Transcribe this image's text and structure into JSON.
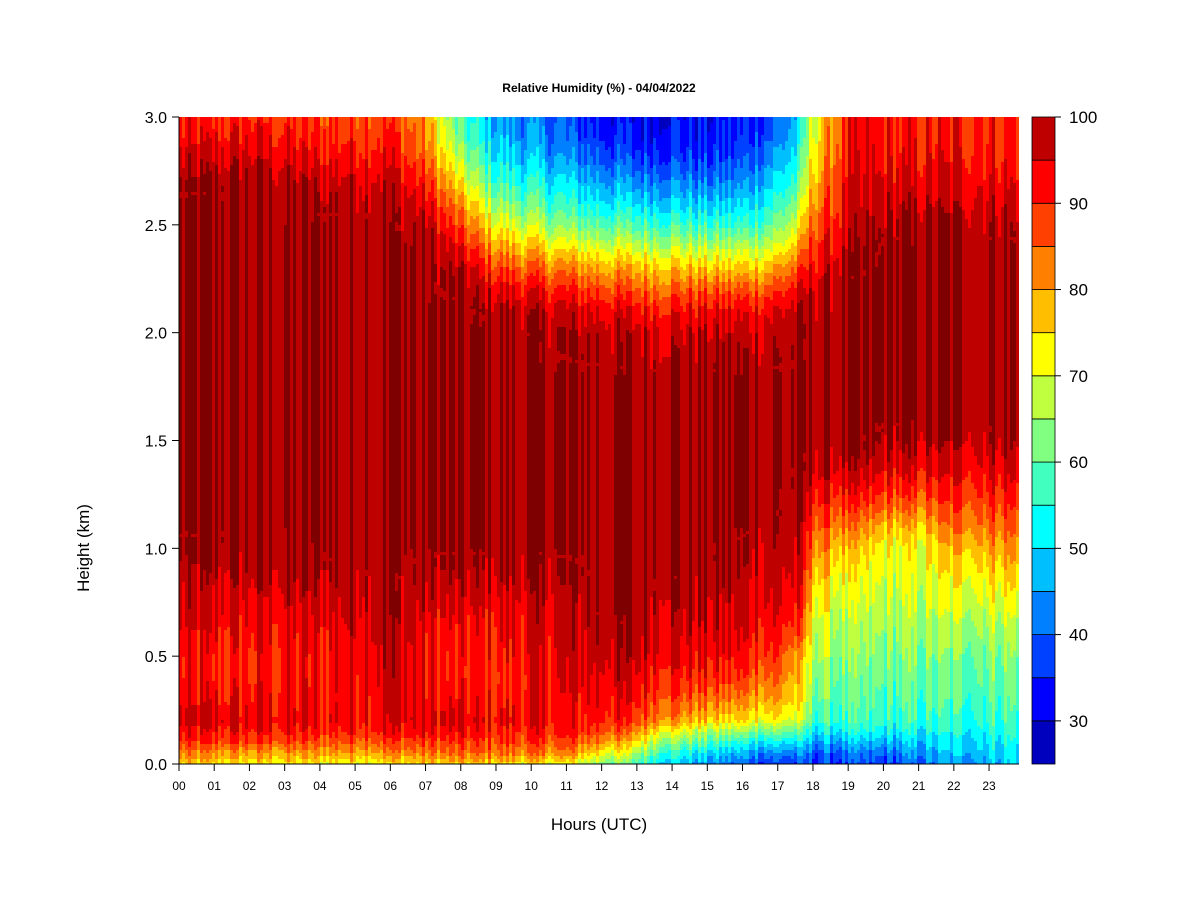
{
  "chart_data": {
    "type": "heatmap",
    "title": "Relative Humidity (%) - 04/04/2022",
    "xlabel": "Hours (UTC)",
    "ylabel": "Height (km)",
    "x_tick_labels": [
      "00",
      "01",
      "02",
      "03",
      "04",
      "05",
      "06",
      "07",
      "08",
      "09",
      "10",
      "11",
      "12",
      "13",
      "14",
      "15",
      "16",
      "17",
      "18",
      "19",
      "20",
      "21",
      "22",
      "23"
    ],
    "xlim": [
      0,
      23.85
    ],
    "y_tick_labels": [
      "0.0",
      "0.5",
      "1.0",
      "1.5",
      "2.0",
      "2.5",
      "3.0"
    ],
    "ylim": [
      0.0,
      3.0
    ],
    "colorbar": {
      "range": [
        25,
        100
      ],
      "tick_labels": [
        "100",
        "90",
        "80",
        "70",
        "60",
        "50",
        "40",
        "30"
      ],
      "tick_values": [
        100,
        90,
        80,
        70,
        60,
        50,
        40,
        30
      ],
      "levels": [
        25,
        30,
        35,
        40,
        45,
        50,
        55,
        60,
        65,
        70,
        75,
        80,
        85,
        90,
        95,
        100
      ],
      "colors": [
        "#00007f",
        "#0000bf",
        "#0000ff",
        "#0040ff",
        "#0080ff",
        "#00bfff",
        "#00ffff",
        "#40ffbf",
        "#80ff80",
        "#bfff40",
        "#ffff00",
        "#ffbf00",
        "#ff8000",
        "#ff4000",
        "#ff0000",
        "#bf0000",
        "#7f0000"
      ]
    },
    "profile_heights_km": [
      0.0,
      0.05,
      0.1,
      0.15,
      0.2,
      0.3,
      0.4,
      0.5,
      0.6,
      0.7,
      0.8,
      0.9,
      1.0,
      1.1,
      1.2,
      1.3,
      1.4,
      1.5,
      1.6,
      1.8,
      2.0,
      2.1,
      2.2,
      2.3,
      2.4,
      2.5,
      2.6,
      2.7,
      2.8,
      2.9,
      3.0
    ],
    "profiles": [
      {
        "hour": 0,
        "rh": [
          75,
          82,
          88,
          92,
          95,
          93,
          92,
          92,
          93,
          95,
          96,
          98,
          99,
          100,
          100,
          100,
          100,
          100,
          100,
          100,
          100,
          100,
          100,
          100,
          100,
          100,
          100,
          99,
          96,
          92,
          90
        ]
      },
      {
        "hour": 2,
        "rh": [
          74,
          80,
          88,
          92,
          94,
          92,
          91,
          91,
          92,
          94,
          96,
          98,
          99,
          100,
          100,
          100,
          100,
          100,
          100,
          100,
          100,
          100,
          100,
          100,
          100,
          100,
          100,
          99,
          97,
          93,
          91
        ]
      },
      {
        "hour": 4,
        "rh": [
          73,
          80,
          86,
          91,
          93,
          92,
          92,
          92,
          93,
          95,
          97,
          99,
          100,
          100,
          100,
          100,
          100,
          100,
          100,
          100,
          100,
          100,
          100,
          100,
          100,
          100,
          99,
          97,
          93,
          90,
          88
        ]
      },
      {
        "hour": 6,
        "rh": [
          74,
          82,
          88,
          93,
          95,
          96,
          97,
          98,
          99,
          100,
          100,
          100,
          100,
          100,
          100,
          100,
          100,
          100,
          100,
          100,
          100,
          100,
          100,
          100,
          100,
          100,
          99,
          97,
          94,
          91,
          89
        ]
      },
      {
        "hour": 7,
        "rh": [
          76,
          83,
          88,
          93,
          95,
          93,
          92,
          92,
          93,
          95,
          97,
          99,
          100,
          100,
          100,
          100,
          100,
          100,
          100,
          100,
          100,
          100,
          100,
          100,
          100,
          98,
          94,
          90,
          85,
          82,
          80
        ]
      },
      {
        "hour": 8,
        "rh": [
          76,
          84,
          88,
          92,
          94,
          92,
          90,
          90,
          91,
          93,
          96,
          98,
          100,
          100,
          100,
          100,
          100,
          100,
          100,
          100,
          100,
          100,
          99,
          97,
          92,
          86,
          80,
          72,
          66,
          60,
          57
        ]
      },
      {
        "hour": 9,
        "rh": [
          76,
          84,
          88,
          91,
          93,
          91,
          90,
          91,
          92,
          94,
          96,
          98,
          100,
          100,
          100,
          100,
          100,
          100,
          100,
          100,
          100,
          99,
          95,
          88,
          80,
          72,
          64,
          57,
          52,
          48,
          46
        ]
      },
      {
        "hour": 11,
        "rh": [
          72,
          82,
          87,
          91,
          93,
          93,
          94,
          95,
          96,
          97,
          98,
          99,
          100,
          100,
          100,
          100,
          100,
          100,
          100,
          100,
          99,
          96,
          90,
          82,
          72,
          62,
          55,
          50,
          44,
          40,
          38
        ]
      },
      {
        "hour": 12,
        "rh": [
          64,
          74,
          83,
          88,
          92,
          94,
          96,
          98,
          99,
          100,
          100,
          100,
          100,
          100,
          100,
          100,
          100,
          100,
          100,
          100,
          98,
          95,
          88,
          80,
          70,
          60,
          52,
          46,
          40,
          36,
          34
        ]
      },
      {
        "hour": 13,
        "rh": [
          58,
          66,
          74,
          82,
          88,
          92,
          95,
          97,
          99,
          100,
          100,
          100,
          100,
          100,
          100,
          100,
          100,
          100,
          100,
          100,
          97,
          93,
          86,
          78,
          68,
          58,
          50,
          43,
          37,
          33,
          31
        ]
      },
      {
        "hour": 14,
        "rh": [
          50,
          56,
          64,
          72,
          82,
          88,
          92,
          95,
          97,
          98,
          99,
          100,
          100,
          100,
          100,
          100,
          100,
          100,
          100,
          100,
          97,
          93,
          86,
          78,
          68,
          58,
          50,
          44,
          38,
          35,
          33
        ]
      },
      {
        "hour": 15,
        "rh": [
          44,
          50,
          58,
          66,
          76,
          84,
          90,
          93,
          95,
          97,
          98,
          99,
          100,
          100,
          100,
          100,
          100,
          100,
          100,
          100,
          97,
          93,
          86,
          76,
          66,
          56,
          48,
          41,
          36,
          33,
          32
        ]
      },
      {
        "hour": 16,
        "rh": [
          40,
          46,
          54,
          64,
          74,
          82,
          88,
          92,
          94,
          96,
          97,
          98,
          99,
          100,
          100,
          100,
          100,
          100,
          100,
          100,
          97,
          93,
          86,
          76,
          66,
          56,
          49,
          43,
          38,
          35,
          33
        ]
      },
      {
        "hour": 17,
        "rh": [
          37,
          43,
          52,
          62,
          72,
          80,
          85,
          89,
          92,
          94,
          96,
          97,
          98,
          99,
          100,
          100,
          100,
          100,
          100,
          100,
          98,
          95,
          88,
          80,
          70,
          62,
          56,
          51,
          46,
          42,
          40
        ]
      },
      {
        "hour": 17.6,
        "rh": [
          36,
          42,
          50,
          58,
          68,
          74,
          76,
          78,
          86,
          90,
          93,
          95,
          96,
          97,
          98,
          99,
          100,
          100,
          100,
          100,
          99,
          97,
          93,
          86,
          78,
          70,
          64,
          58,
          54,
          50,
          48
        ]
      },
      {
        "hour": 18,
        "rh": [
          36,
          40,
          46,
          52,
          58,
          62,
          65,
          68,
          70,
          73,
          76,
          80,
          84,
          88,
          92,
          96,
          99,
          100,
          100,
          100,
          100,
          99,
          97,
          93,
          90,
          86,
          82,
          78,
          75,
          72,
          70
        ]
      },
      {
        "hour": 19,
        "rh": [
          36,
          40,
          46,
          52,
          56,
          58,
          60,
          62,
          64,
          66,
          69,
          72,
          76,
          82,
          88,
          93,
          97,
          100,
          100,
          100,
          100,
          100,
          100,
          99,
          97,
          95,
          94,
          93,
          92,
          92,
          92
        ]
      },
      {
        "hour": 20,
        "rh": [
          36,
          40,
          46,
          52,
          56,
          58,
          60,
          62,
          64,
          66,
          68,
          70,
          72,
          78,
          86,
          92,
          96,
          99,
          100,
          100,
          100,
          100,
          100,
          100,
          100,
          99,
          97,
          95,
          93,
          92,
          92
        ]
      },
      {
        "hour": 21,
        "rh": [
          40,
          44,
          48,
          52,
          56,
          58,
          60,
          62,
          64,
          66,
          68,
          70,
          71,
          76,
          84,
          90,
          95,
          98,
          100,
          100,
          100,
          100,
          100,
          100,
          100,
          99,
          97,
          94,
          92,
          91,
          91
        ]
      },
      {
        "hour": 22,
        "rh": [
          44,
          48,
          50,
          53,
          56,
          58,
          60,
          62,
          65,
          68,
          71,
          74,
          78,
          84,
          88,
          92,
          95,
          98,
          100,
          100,
          100,
          100,
          100,
          100,
          100,
          99,
          97,
          95,
          93,
          92,
          92
        ]
      },
      {
        "hour": 23.85,
        "rh": [
          50,
          52,
          54,
          56,
          58,
          60,
          62,
          64,
          66,
          70,
          74,
          78,
          82,
          86,
          90,
          94,
          97,
          100,
          100,
          100,
          100,
          100,
          100,
          100,
          100,
          99,
          97,
          94,
          92,
          91,
          91
        ]
      }
    ]
  }
}
